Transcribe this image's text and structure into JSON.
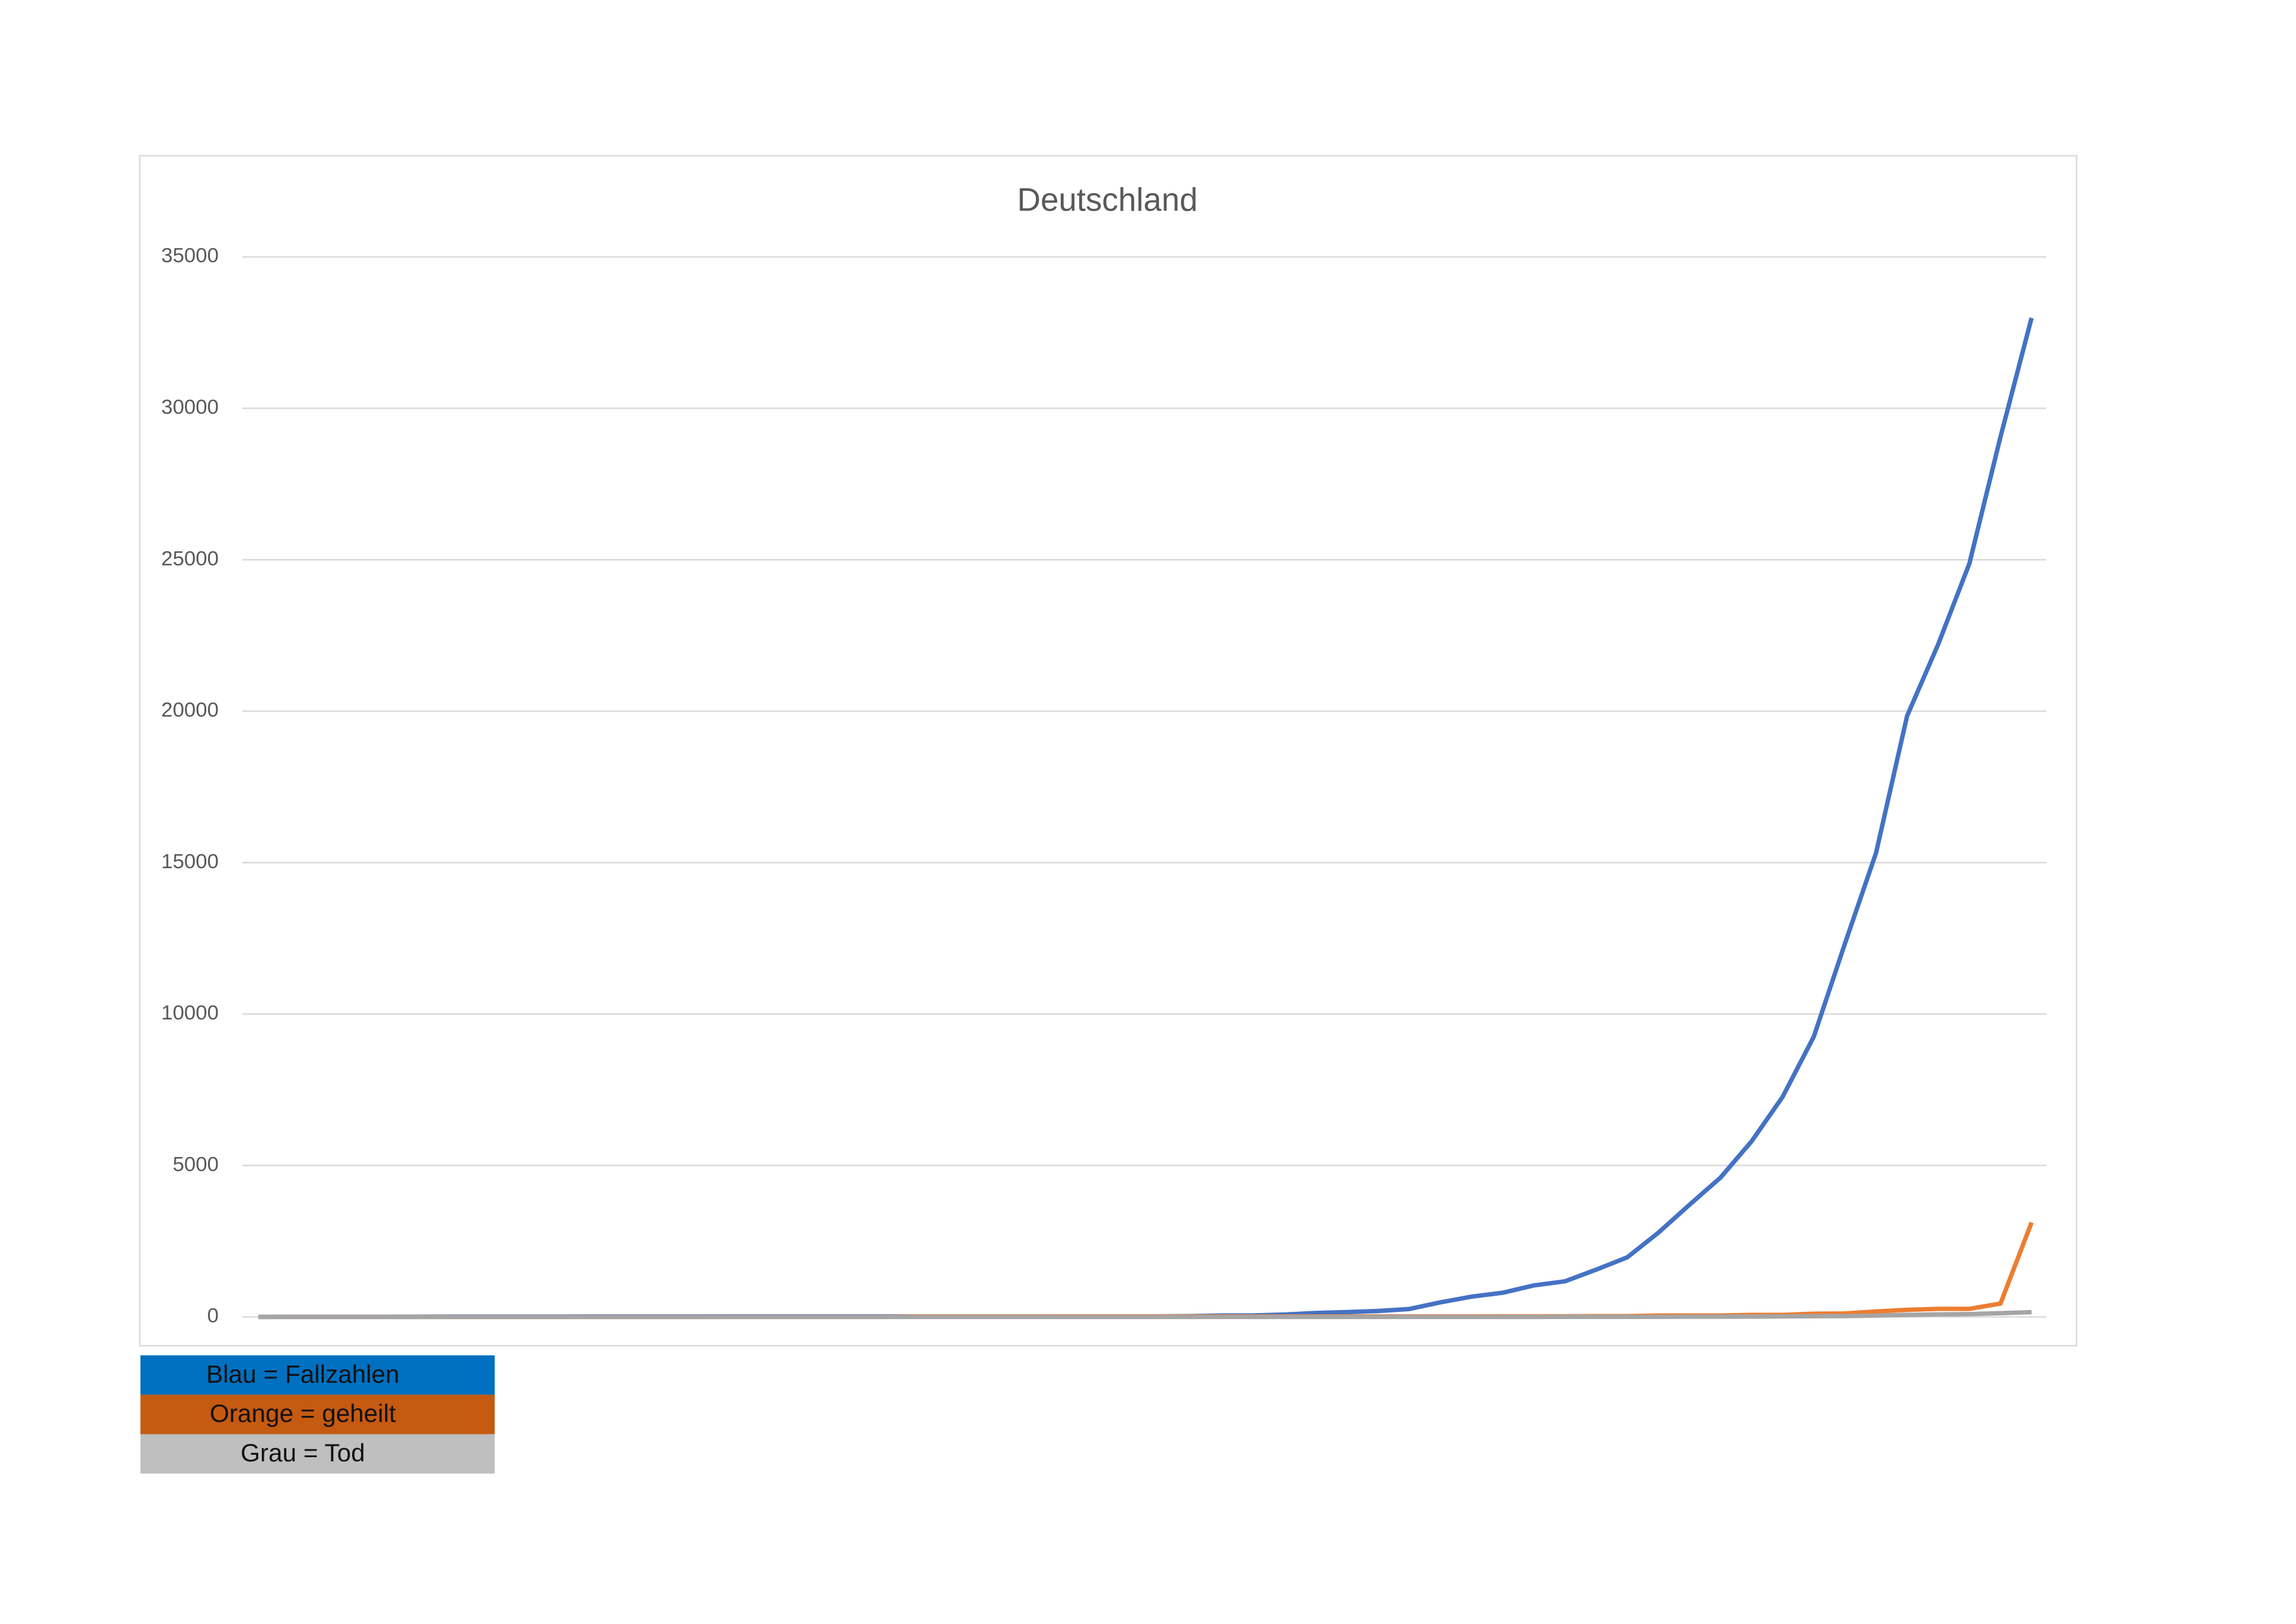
{
  "chart_data": {
    "type": "line",
    "title": "Deutschland",
    "categories": [
      null,
      null,
      null,
      null,
      null,
      null,
      null,
      null,
      null,
      null,
      null,
      null,
      null,
      null,
      null,
      null,
      null,
      null,
      null,
      null,
      null,
      null,
      null,
      null,
      null,
      null,
      null,
      null,
      null,
      null,
      null,
      null,
      null,
      null,
      null,
      null,
      null,
      null,
      null,
      null,
      null,
      null,
      null,
      null,
      null,
      null,
      null,
      null,
      null,
      null,
      null,
      null,
      null,
      null,
      null,
      null,
      null,
      null
    ],
    "series": [
      {
        "name": "Blau = Fallzahlen",
        "color": "#4472c4",
        "legend_color": "#0070c0",
        "values": [
          1,
          4,
          4,
          4,
          5,
          8,
          10,
          12,
          12,
          12,
          12,
          13,
          13,
          14,
          14,
          16,
          16,
          16,
          16,
          16,
          16,
          16,
          16,
          16,
          16,
          16,
          16,
          16,
          16,
          17,
          27,
          46,
          48,
          79,
          130,
          159,
          196,
          262,
          482,
          670,
          799,
          1040,
          1176,
          1560,
          1966,
          2780,
          3700,
          4600,
          5800,
          7272,
          9257,
          12327,
          15320,
          19848,
          22213,
          24873,
          29056,
          32986
        ]
      },
      {
        "name": "Orange = geheilt",
        "color": "#ed7d31",
        "legend_color": "#c55a11",
        "values": [
          0,
          0,
          0,
          0,
          0,
          0,
          0,
          0,
          0,
          0,
          0,
          0,
          0,
          0,
          0,
          0,
          0,
          0,
          0,
          0,
          0,
          14,
          14,
          14,
          14,
          14,
          16,
          16,
          16,
          16,
          16,
          16,
          16,
          16,
          16,
          16,
          16,
          16,
          16,
          17,
          18,
          18,
          18,
          25,
          25,
          46,
          46,
          46,
          67,
          67,
          105,
          113,
          180,
          233,
          266,
          266,
          440,
          3120
        ]
      },
      {
        "name": "Grau = Tod",
        "color": "#a5a5a5",
        "legend_color": "#bfbfbf",
        "values": [
          0,
          0,
          0,
          0,
          0,
          0,
          0,
          0,
          0,
          0,
          0,
          0,
          0,
          0,
          0,
          0,
          0,
          0,
          0,
          0,
          0,
          0,
          0,
          0,
          0,
          0,
          0,
          0,
          0,
          0,
          0,
          0,
          0,
          0,
          0,
          0,
          0,
          0,
          0,
          0,
          0,
          0,
          2,
          2,
          3,
          3,
          7,
          9,
          11,
          17,
          24,
          28,
          44,
          67,
          84,
          94,
          123,
          157
        ]
      }
    ],
    "ylim": [
      0,
      35000
    ],
    "yticks": [
      0,
      5000,
      10000,
      15000,
      20000,
      25000,
      30000,
      35000
    ],
    "grid": true
  }
}
